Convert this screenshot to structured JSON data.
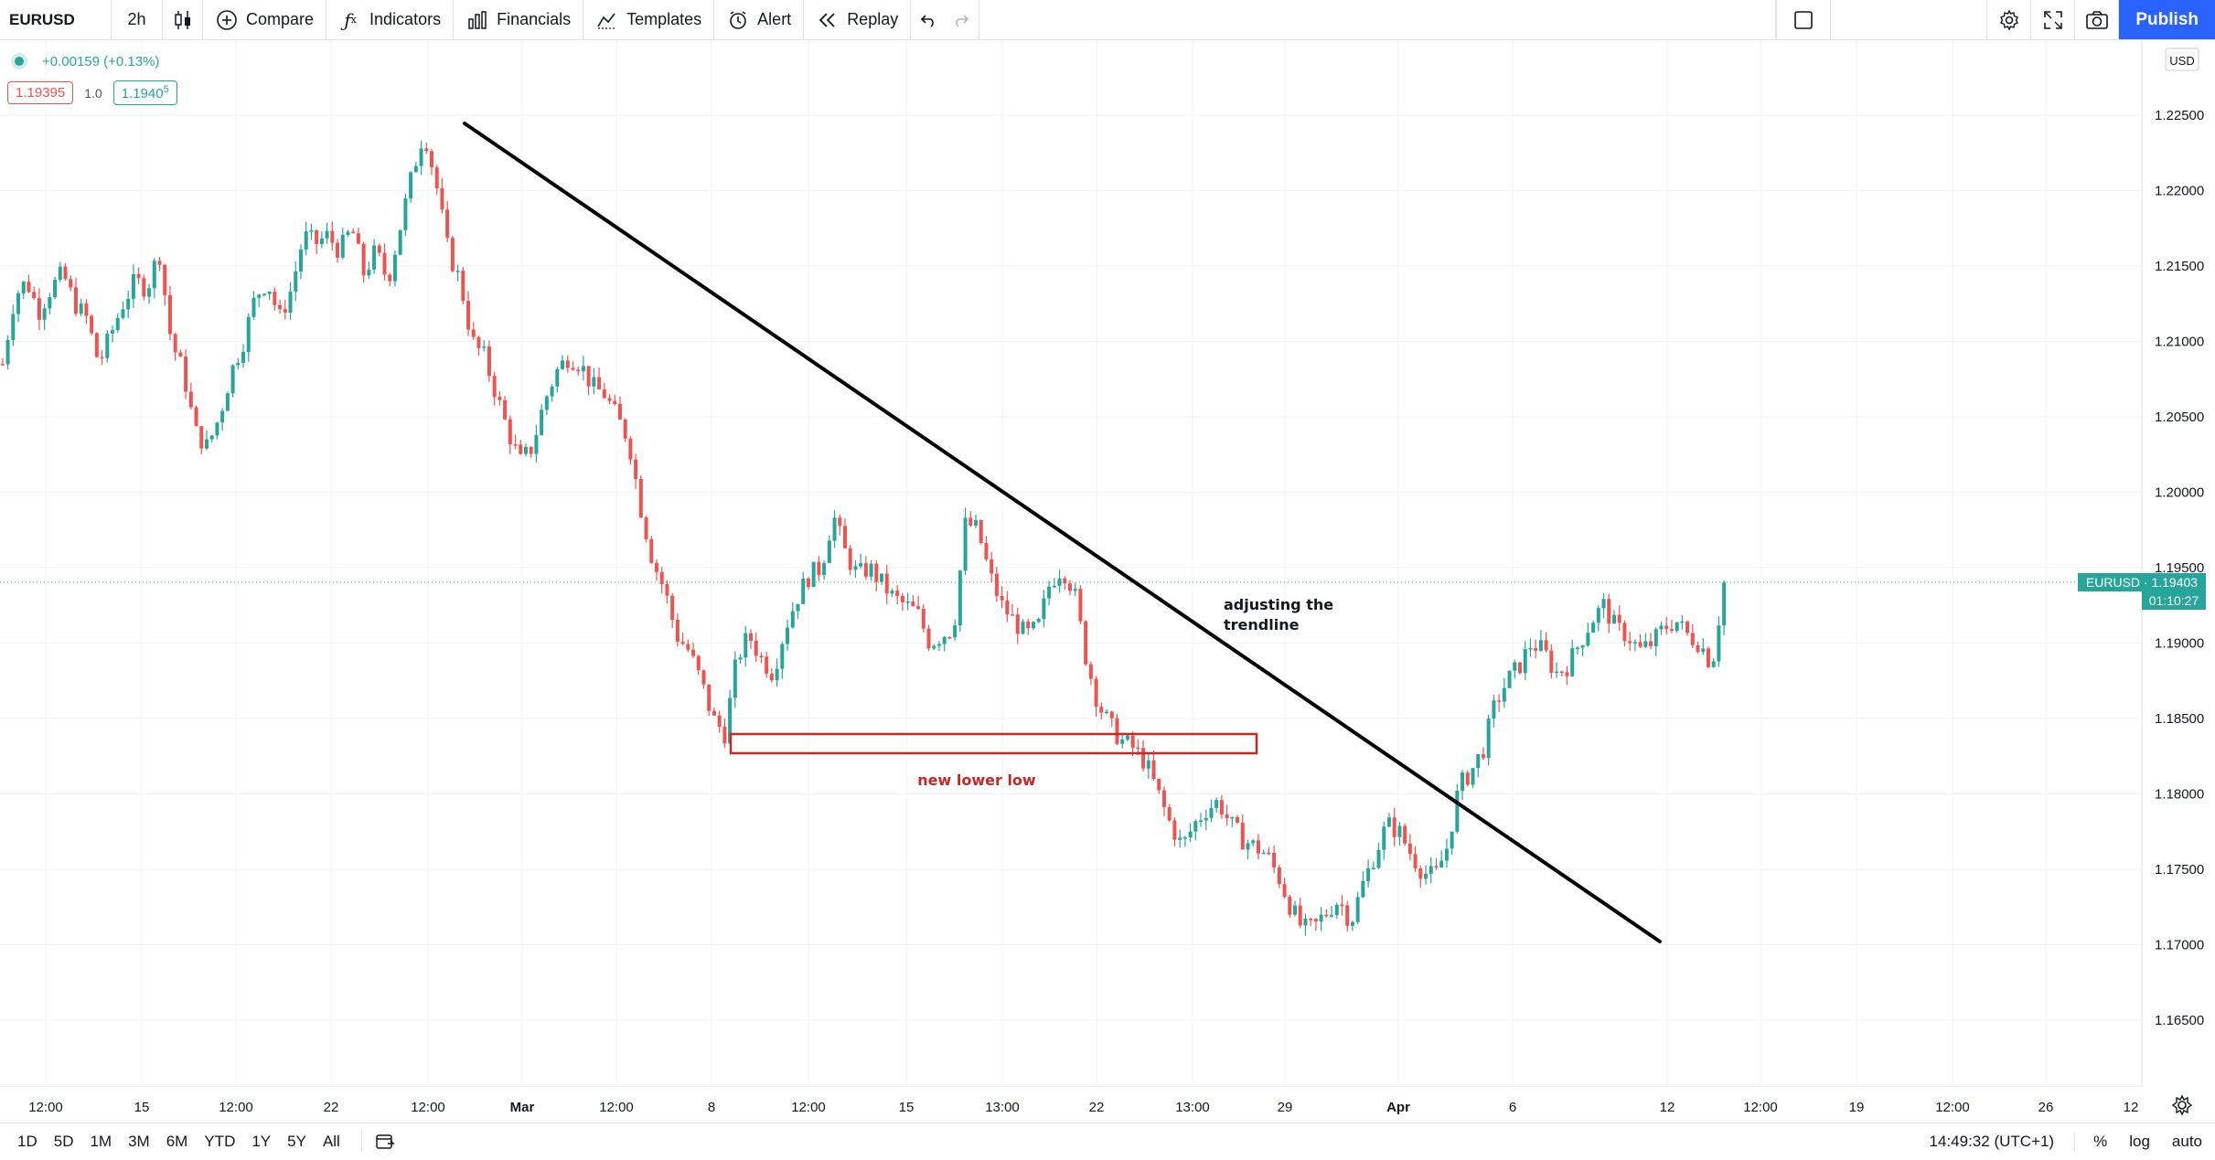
{
  "toolbar": {
    "symbol": "EURUSD",
    "interval": "2h",
    "compare": "Compare",
    "indicators": "Indicators",
    "financials": "Financials",
    "templates": "Templates",
    "alert": "Alert",
    "replay": "Replay",
    "publish": "Publish"
  },
  "legend": {
    "change": "+0.00159 (+0.13%)",
    "sell": "1.19395",
    "spread": "1.0",
    "buy_main": "1.1940",
    "buy_sup": "5"
  },
  "price_axis": {
    "currency": "USD",
    "ticks": [
      "1.22500",
      "1.22000",
      "1.21500",
      "1.21000",
      "1.20500",
      "1.20000",
      "1.19500",
      "1.19000",
      "1.18500",
      "1.18000",
      "1.17500",
      "1.17000",
      "1.16500"
    ],
    "last_label": "EURUSD · 1.19403",
    "countdown": "01:10:27"
  },
  "time_axis": {
    "ticks": [
      "12:00",
      "15",
      "12:00",
      "22",
      "12:00",
      "Mar",
      "12:00",
      "8",
      "12:00",
      "15",
      "13:00",
      "22",
      "13:00",
      "29",
      "Apr",
      "6",
      "12",
      "12:00",
      "19",
      "12:00",
      "26",
      "12"
    ]
  },
  "annotations": {
    "trend_note_line1": "adjusting the",
    "trend_note_line2": "trendline",
    "box_note": "new lower low"
  },
  "bottom": {
    "ranges": [
      "1D",
      "5D",
      "1M",
      "3M",
      "6M",
      "YTD",
      "1Y",
      "5Y",
      "All"
    ],
    "clock": "14:49:32 (UTC+1)",
    "pct": "%",
    "log": "log",
    "auto": "auto"
  },
  "colors": {
    "up": "#26a69a",
    "down": "#ef5350",
    "trendline": "#000000",
    "box": "#c62828",
    "accent": "#2962ff"
  },
  "chart_data": {
    "type": "candlestick",
    "symbol": "EURUSD",
    "timeframe": "2h",
    "ylim": [
      1.1625,
      1.2275
    ],
    "grid": true,
    "path": [
      1.2085,
      1.213,
      1.214,
      1.212,
      1.2135,
      1.2145,
      1.2125,
      1.2115,
      1.2085,
      1.2105,
      1.2125,
      1.214,
      1.2135,
      1.216,
      1.21,
      1.208,
      1.204,
      1.203,
      1.205,
      1.208,
      1.21,
      1.213,
      1.214,
      1.2115,
      1.2135,
      1.217,
      1.2165,
      1.217,
      1.216,
      1.2175,
      1.2145,
      1.216,
      1.214,
      1.2175,
      1.221,
      1.224,
      1.2205,
      1.216,
      1.214,
      1.21,
      1.209,
      1.2065,
      1.204,
      1.202,
      1.203,
      1.206,
      1.208,
      1.209,
      1.2085,
      1.207,
      1.2065,
      1.205,
      1.2035,
      1.199,
      1.1955,
      1.1935,
      1.1905,
      1.1895,
      1.1875,
      1.185,
      1.184,
      1.189,
      1.1905,
      1.189,
      1.188,
      1.191,
      1.193,
      1.1945,
      1.195,
      1.1985,
      1.196,
      1.1945,
      1.195,
      1.194,
      1.193,
      1.1925,
      1.192,
      1.19,
      1.1905,
      1.191,
      1.198,
      1.1975,
      1.1945,
      1.1925,
      1.1915,
      1.1905,
      1.191,
      1.194,
      1.195,
      1.1935,
      1.189,
      1.186,
      1.1845,
      1.1835,
      1.183,
      1.182,
      1.18,
      1.178,
      1.1765,
      1.178,
      1.179,
      1.1795,
      1.178,
      1.177,
      1.1765,
      1.176,
      1.1745,
      1.1725,
      1.171,
      1.1712,
      1.1722,
      1.173,
      1.1715,
      1.174,
      1.176,
      1.178,
      1.1775,
      1.176,
      1.1748,
      1.1745,
      1.1765,
      1.1805,
      1.1815,
      1.183,
      1.186,
      1.1875,
      1.1885,
      1.19,
      1.1895,
      1.188,
      1.1885,
      1.19,
      1.1915,
      1.1925,
      1.191,
      1.1905,
      1.1895,
      1.19,
      1.191,
      1.1915,
      1.1905,
      1.19,
      1.1885,
      1.194
    ],
    "last_price": 1.19403
  }
}
